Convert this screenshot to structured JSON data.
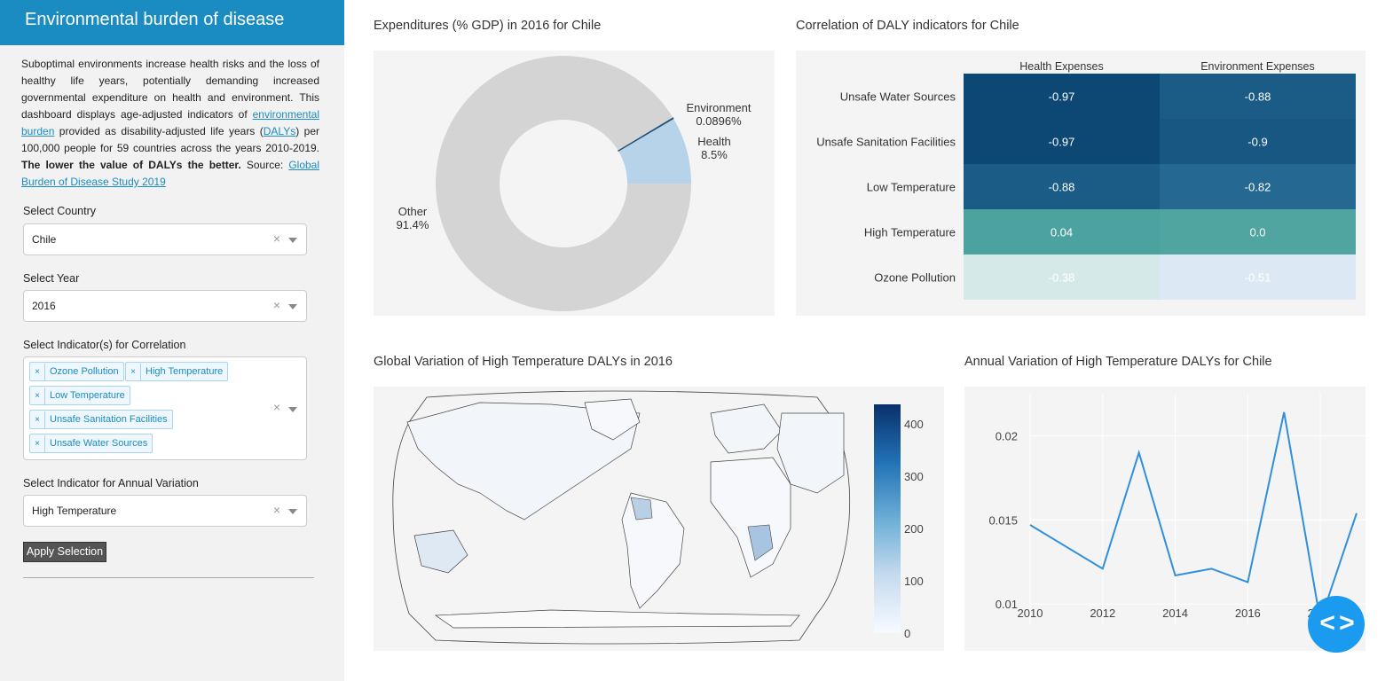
{
  "sidebar": {
    "title": "Environmental burden of disease",
    "intro": {
      "p1": "Suboptimal environments increase health risks and the loss of healthy life years, potentially demanding increased governmental expenditure on health and environment. This dashboard displays age-adjusted indicators of ",
      "link1": "environmental burden",
      "p2": " provided as disability-adjusted life years (",
      "link2": "DALYs",
      "p3": ") per 100,000 people for 59 countries across the years 2010-2019. ",
      "bold": "The lower the value of DALYs the better.",
      "p4": " Source: ",
      "link3": "Global Burden of Disease Study 2019"
    },
    "country_label": "Select Country",
    "country_value": "Chile",
    "year_label": "Select Year",
    "year_value": "2016",
    "indicators_label": "Select Indicator(s) for Correlation",
    "indicator_tags": [
      "Ozone Pollution",
      "High Temperature",
      "Low Temperature",
      "Unsafe Sanitation Facilities",
      "Unsafe Water Sources"
    ],
    "annual_label": "Select Indicator for Annual Variation",
    "annual_value": "High Temperature",
    "apply_label": "Apply Selection",
    "clear_glyph": "×",
    "tag_remove_glyph": "×"
  },
  "pie_panel": {
    "title": "Expenditures (% GDP) in 2016 for Chile",
    "labels": {
      "environment": "Environment",
      "environment_pct": "0.0896%",
      "health": "Health",
      "health_pct": "8.5%",
      "other": "Other",
      "other_pct": "91.4%"
    }
  },
  "heatmap_panel": {
    "title": "Correlation of DALY indicators for Chile"
  },
  "map_panel": {
    "title": "Global Variation of High Temperature DALYs in 2016",
    "colorbar_ticks": [
      "400",
      "300",
      "200",
      "100",
      "0"
    ]
  },
  "line_panel": {
    "title": "Annual Variation of High Temperature DALYs for Chile"
  },
  "code_button_glyph": "< >",
  "colors": {
    "header_blue": "#1a8cc2",
    "pie_other": "#d4d4d4",
    "pie_health": "#b7d3e9",
    "line": "#2f8fdc"
  },
  "chart_data": [
    {
      "type": "pie",
      "title": "Expenditures (% GDP) in 2016 for Chile",
      "labels": [
        "Other",
        "Health",
        "Environment"
      ],
      "values": [
        91.4,
        8.5,
        0.0896
      ]
    },
    {
      "type": "heatmap",
      "title": "Correlation of DALY indicators for Chile",
      "x": [
        "Health Expenses",
        "Environment Expenses"
      ],
      "y": [
        "Unsafe Water Sources",
        "Unsafe Sanitation Facilities",
        "Low Temperature",
        "High Temperature",
        "Ozone Pollution"
      ],
      "z": [
        [
          "-0.97",
          "-0.88"
        ],
        [
          "-0.97",
          "-0.9"
        ],
        [
          "-0.88",
          "-0.82"
        ],
        [
          "0.04",
          "0.0"
        ],
        [
          "-0.38",
          "-0.51"
        ]
      ]
    },
    {
      "type": "line",
      "title": "Annual Variation of High Temperature DALYs for Chile",
      "x": [
        2010,
        2011,
        2012,
        2013,
        2014,
        2015,
        2016,
        2017,
        2018,
        2019
      ],
      "y": [
        0.0147,
        0.0134,
        0.0121,
        0.019,
        0.0117,
        0.0121,
        0.0113,
        0.0214,
        0.009,
        0.0154
      ],
      "x_ticks": [
        "2010",
        "2012",
        "2014",
        "2016",
        "2018"
      ],
      "y_ticks": [
        "0.02",
        "0.015",
        "0.01"
      ],
      "ylim": [
        0.0088,
        0.0225
      ],
      "xlim": [
        2010,
        2019
      ],
      "grid": true
    }
  ]
}
